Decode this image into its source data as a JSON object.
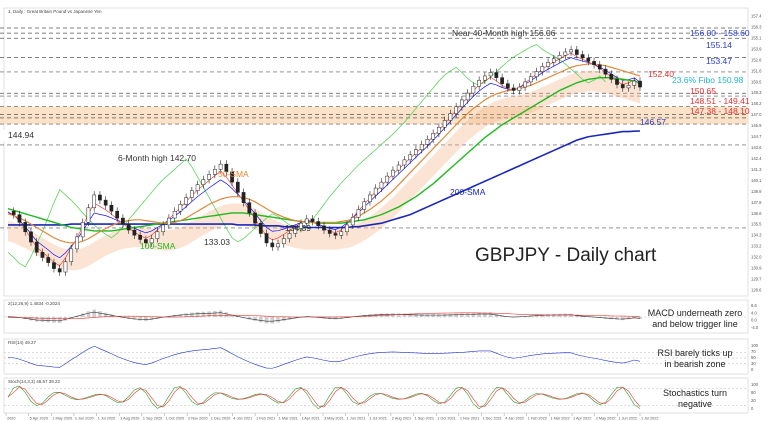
{
  "header": {
    "symbol_label": "1, Daily : Great Britain Pound vs Japanese Yen"
  },
  "chart_data": {
    "type": "line",
    "title": "GBPJPY - Daily chart",
    "ylim": [
      128,
      160
    ],
    "x_ticks": [
      "2020",
      "5 Apr 2020",
      "1 May 2020",
      "1 Jun 2020",
      "1 Jul 2020",
      "3 Aug 2020",
      "1 Sep 2020",
      "1 Oct 2020",
      "2 Nov 2020",
      "1 Dec 2020",
      "4 Jan 2021",
      "1 Feb 2021",
      "1 Mar 2021",
      "1 Apr 2021",
      "3 May 2021",
      "1 Jun 2021",
      "1 Jul 2021",
      "2 Aug 2021",
      "1 Sep 2021",
      "1 Oct 2021",
      "1 Nov 2021",
      "1 Dec 2021",
      "4 Jan 2022",
      "1 Feb 2022",
      "1 Mar 2022",
      "1 Apr 2022",
      "2 May 2022",
      "1 Jun 2022",
      "1 Jul 2022"
    ],
    "price_axis_labels": [
      "157.4",
      "156.3",
      "155.1",
      "153.9",
      "152.8",
      "151.6",
      "150.5",
      "149.3",
      "148.2",
      "147.0",
      "145.9",
      "144.7",
      "143.6",
      "142.4",
      "141.3",
      "140.1",
      "138.9",
      "137.8",
      "136.6",
      "135.5",
      "134.3",
      "133.2",
      "132.0",
      "130.9",
      "129.7",
      "128.6"
    ],
    "close": [
      137.2,
      136.8,
      135.9,
      134.8,
      133.6,
      132.4,
      131.8,
      131.2,
      130.5,
      130.1,
      131.3,
      132.8,
      134.2,
      135.9,
      137.6,
      139.1,
      138.5,
      137.9,
      137.2,
      136.4,
      135.7,
      135.0,
      134.4,
      133.9,
      133.5,
      134.0,
      134.8,
      135.6,
      136.4,
      137.2,
      138.0,
      138.8,
      139.6,
      140.3,
      140.9,
      141.5,
      142.1,
      142.7,
      141.8,
      140.6,
      139.4,
      138.2,
      137.0,
      135.8,
      134.6,
      133.5,
      133.03,
      133.4,
      134.0,
      134.6,
      135.2,
      135.8,
      136.3,
      136.0,
      135.5,
      135.0,
      134.6,
      134.39,
      134.8,
      135.6,
      136.5,
      137.4,
      138.3,
      139.1,
      139.9,
      140.6,
      141.3,
      142.0,
      142.6,
      143.2,
      143.8,
      144.4,
      145.0,
      145.6,
      146.3,
      147.0,
      147.8,
      148.6,
      149.4,
      150.2,
      151.0,
      151.8,
      152.5,
      153.0,
      153.4,
      152.8,
      152.1,
      151.6,
      151.3,
      151.7,
      152.3,
      152.9,
      153.5,
      154.1,
      154.6,
      155.0,
      155.4,
      155.8,
      156.06,
      155.5,
      155.1,
      154.7,
      154.3,
      153.8,
      153.2,
      152.6,
      152.0,
      151.6,
      151.9,
      152.4,
      151.7
    ],
    "sma_50": [
      136.9,
      136.7,
      136.4,
      136.1,
      135.7,
      135.3,
      134.9,
      134.5,
      134.1,
      133.8,
      133.6,
      133.5,
      133.5,
      133.7,
      134.0,
      134.4,
      134.8,
      135.2,
      135.5,
      135.8,
      136.0,
      136.1,
      136.2,
      136.2,
      136.1,
      136.0,
      135.9,
      135.8,
      135.8,
      135.9,
      136.1,
      136.4,
      136.8,
      137.2,
      137.6,
      138.0,
      138.3,
      138.6,
      138.8,
      138.9,
      138.9,
      138.8,
      138.6,
      138.3,
      137.9,
      137.5,
      137.1,
      136.8,
      136.5,
      136.3,
      136.1,
      136.0,
      135.9,
      135.9,
      135.9,
      135.9,
      135.9,
      135.9,
      136.0,
      136.1,
      136.3,
      136.6,
      137.0,
      137.4,
      137.9,
      138.4,
      139.0,
      139.6,
      140.3,
      141.0,
      141.7,
      142.4,
      143.1,
      143.8,
      144.5,
      145.2,
      145.9,
      146.6,
      147.3,
      148.0,
      148.6,
      149.2,
      149.7,
      150.2,
      150.6,
      150.9,
      151.1,
      151.3,
      151.4,
      151.5,
      151.7,
      151.9,
      152.2,
      152.5,
      152.8,
      153.1,
      153.4,
      153.7,
      154.0,
      154.2,
      154.3,
      154.4,
      154.4,
      154.3,
      154.2,
      154.0,
      153.8,
      153.6,
      153.4,
      153.2,
      153.0
    ],
    "sma_100": [
      137.5,
      137.3,
      137.1,
      136.9,
      136.7,
      136.5,
      136.3,
      136.1,
      135.9,
      135.7,
      135.5,
      135.3,
      135.2,
      135.1,
      135.0,
      134.9,
      134.9,
      134.9,
      134.9,
      135.0,
      135.1,
      135.2,
      135.3,
      135.4,
      135.5,
      135.6,
      135.7,
      135.8,
      135.9,
      136.0,
      136.1,
      136.2,
      136.3,
      136.4,
      136.5,
      136.6,
      136.7,
      136.8,
      136.9,
      137.0,
      137.0,
      137.0,
      136.9,
      136.8,
      136.7,
      136.6,
      136.5,
      136.4,
      136.3,
      136.2,
      136.1,
      136.0,
      135.9,
      135.9,
      135.8,
      135.8,
      135.8,
      135.8,
      135.8,
      135.9,
      136.0,
      136.1,
      136.2,
      136.4,
      136.6,
      136.8,
      137.1,
      137.4,
      137.7,
      138.1,
      138.5,
      138.9,
      139.4,
      139.9,
      140.4,
      141.0,
      141.6,
      142.2,
      142.8,
      143.4,
      144.0,
      144.6,
      145.2,
      145.8,
      146.3,
      146.8,
      147.3,
      147.7,
      148.1,
      148.5,
      148.9,
      149.3,
      149.7,
      150.1,
      150.5,
      150.9,
      151.3,
      151.6,
      151.9,
      152.2,
      152.4,
      152.6,
      152.7,
      152.8,
      152.8,
      152.8,
      152.7,
      152.6,
      152.5,
      152.4,
      152.2
    ],
    "sma_200": [
      135.6,
      135.6,
      135.6,
      135.6,
      135.6,
      135.6,
      135.6,
      135.6,
      135.6,
      135.6,
      135.6,
      135.7,
      135.7,
      135.7,
      135.7,
      135.7,
      135.7,
      135.7,
      135.7,
      135.7,
      135.7,
      135.7,
      135.7,
      135.7,
      135.7,
      135.7,
      135.7,
      135.7,
      135.7,
      135.7,
      135.7,
      135.7,
      135.7,
      135.7,
      135.7,
      135.7,
      135.7,
      135.7,
      135.7,
      135.7,
      135.6,
      135.6,
      135.6,
      135.6,
      135.5,
      135.5,
      135.5,
      135.5,
      135.4,
      135.4,
      135.4,
      135.4,
      135.3,
      135.3,
      135.3,
      135.3,
      135.3,
      135.3,
      135.3,
      135.3,
      135.4,
      135.4,
      135.5,
      135.6,
      135.7,
      135.8,
      136.0,
      136.2,
      136.4,
      136.6,
      136.8,
      137.1,
      137.4,
      137.7,
      138.0,
      138.3,
      138.6,
      138.9,
      139.2,
      139.5,
      139.8,
      140.1,
      140.4,
      140.7,
      141.0,
      141.3,
      141.6,
      141.9,
      142.2,
      142.5,
      142.8,
      143.1,
      143.4,
      143.7,
      144.0,
      144.3,
      144.6,
      144.9,
      145.2,
      145.5,
      145.7,
      145.9,
      146.0,
      146.1,
      146.2,
      146.3,
      146.4,
      146.5,
      146.5,
      146.55,
      146.57
    ],
    "horizontal_levels": [
      {
        "value": 158.6,
        "style": "dashed",
        "color": "#555555"
      },
      {
        "value": 158.0,
        "style": "dashed",
        "color": "#555555"
      },
      {
        "value": 157.4,
        "style": "dashed",
        "color": "#555555"
      },
      {
        "value": 155.14,
        "style": "dashed",
        "color": "#555555"
      },
      {
        "value": 153.47,
        "style": "dashed",
        "color": "#555555"
      },
      {
        "value": 150.98,
        "style": "dashed",
        "color": "#555555"
      },
      {
        "value": 150.65,
        "style": "dashed",
        "color": "#555555"
      },
      {
        "value": 149.41,
        "style": "dashed",
        "color": "#555555"
      },
      {
        "value": 148.51,
        "style": "dashed",
        "color": "#555555"
      },
      {
        "value": 148.1,
        "style": "dashed",
        "color": "#555555"
      },
      {
        "value": 147.38,
        "style": "dashed",
        "color": "#555555"
      },
      {
        "value": 144.94,
        "style": "dashed",
        "color": "#555555"
      },
      {
        "value": 135.25,
        "style": "dashed",
        "color": "#555555"
      }
    ],
    "zones": [
      {
        "from": 147.38,
        "to": 149.41,
        "color": "#fbe2c8"
      }
    ],
    "annotations": [
      {
        "text": "Near 40-Month high 156.06",
        "color": "#333333"
      },
      {
        "text": "156.00 - 158.60",
        "color": "#2a3cc8"
      },
      {
        "text": "155.14",
        "color": "#2a3cc8"
      },
      {
        "text": "153.47",
        "color": "#2a3cc8"
      },
      {
        "text": "152.40",
        "color": "#e53333"
      },
      {
        "text": "23.6% Fibo 150.98",
        "color": "#20b6c8"
      },
      {
        "text": "150.65",
        "color": "#e53333"
      },
      {
        "text": "148.51 - 149.41",
        "color": "#e53333"
      },
      {
        "text": "147.38 - 148.10",
        "color": "#e53333"
      },
      {
        "text": "146.57",
        "color": "#2a3cc8"
      },
      {
        "text": "144.94",
        "color": "#333333"
      },
      {
        "text": "6-Month high 142.70",
        "color": "#333333"
      },
      {
        "text": "50-SMA",
        "color": "#e0893b"
      },
      {
        "text": "100-SMA",
        "color": "#1fb81f"
      },
      {
        "text": "200-SMA",
        "color": "#1a28b8"
      },
      {
        "text": "133.03",
        "color": "#333333"
      },
      {
        "text": "134.39",
        "color": "#333333"
      }
    ],
    "colors": {
      "sma_50": "#e0893b",
      "sma_100": "#1fb81f",
      "sma_200": "#1a28b8",
      "candle_up": "#2a2a2a",
      "candle_down": "#2a2a2a",
      "cloud": "#f4b183",
      "cloud_alt": "#9ec5f0",
      "chikou": "#5ed35e",
      "kijun": "#1010ff",
      "tenkan": "#ee3333"
    }
  },
  "indicators": {
    "macd": {
      "header": "2(12,26,9) 1.4834 -0.2024",
      "note": "MACD underneath zero and below trigger line",
      "axis_labels": [
        "6.6",
        "4.0",
        "0.0",
        "-4.0"
      ]
    },
    "rsi": {
      "header": "RSI(14) 49.27",
      "note": "RSI barely ticks up in bearish zone",
      "axis_labels": [
        "100",
        "70",
        "50",
        "30",
        "0"
      ]
    },
    "stochastics": {
      "header": "Stoch(14,3,3) 46.57 39.22",
      "note": "Stochastics turn negative",
      "axis_labels": [
        "100",
        "80",
        "20",
        "0"
      ]
    }
  }
}
